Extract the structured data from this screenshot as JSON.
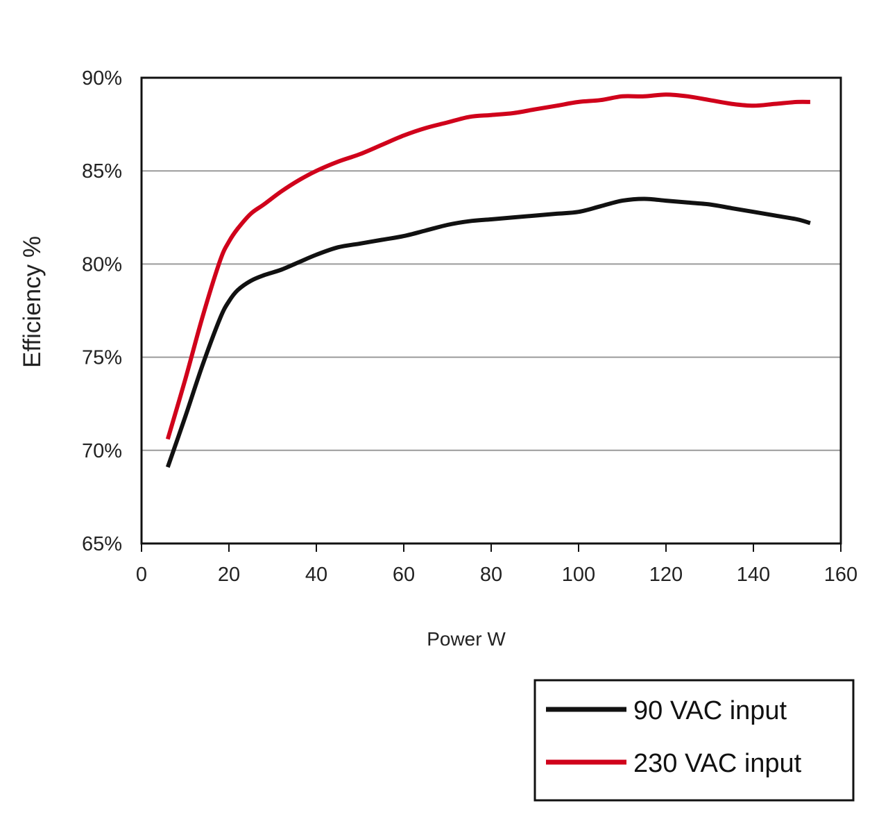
{
  "chart_data": {
    "type": "line",
    "title": "",
    "xlabel": "Power W",
    "ylabel": "Efficiency %",
    "xlim": [
      0,
      160
    ],
    "ylim": [
      65,
      90
    ],
    "x_ticks": [
      0,
      20,
      40,
      60,
      80,
      100,
      120,
      140,
      160
    ],
    "x_tick_labels": [
      "0",
      "20",
      "40",
      "60",
      "80",
      "100",
      "120",
      "140",
      "160"
    ],
    "y_ticks": [
      65,
      70,
      75,
      80,
      85,
      90
    ],
    "y_tick_labels": [
      "65%",
      "70%",
      "75%",
      "80%",
      "85%",
      "90%"
    ],
    "grid": "horizontal",
    "legend_position": "bottom-right",
    "series": [
      {
        "name": "90 VAC input",
        "color": "#111111",
        "x": [
          6,
          10,
          14,
          18,
          20,
          22,
          25,
          28,
          32,
          36,
          40,
          45,
          50,
          55,
          60,
          65,
          70,
          75,
          80,
          85,
          90,
          95,
          100,
          105,
          110,
          115,
          120,
          125,
          130,
          135,
          140,
          145,
          150,
          153
        ],
        "y": [
          69.1,
          71.8,
          74.6,
          77.1,
          78.0,
          78.6,
          79.1,
          79.4,
          79.7,
          80.1,
          80.5,
          80.9,
          81.1,
          81.3,
          81.5,
          81.8,
          82.1,
          82.3,
          82.4,
          82.5,
          82.6,
          82.7,
          82.8,
          83.1,
          83.4,
          83.5,
          83.4,
          83.3,
          83.2,
          83.0,
          82.8,
          82.6,
          82.4,
          82.2
        ]
      },
      {
        "name": "230 VAC input",
        "color": "#d0021b",
        "x": [
          6,
          10,
          14,
          18,
          20,
          22,
          25,
          28,
          32,
          36,
          40,
          45,
          50,
          55,
          60,
          65,
          70,
          75,
          80,
          85,
          90,
          95,
          100,
          105,
          110,
          115,
          120,
          125,
          130,
          135,
          140,
          145,
          150,
          153
        ],
        "y": [
          70.6,
          73.8,
          77.2,
          80.2,
          81.2,
          81.9,
          82.7,
          83.2,
          83.9,
          84.5,
          85.0,
          85.5,
          85.9,
          86.4,
          86.9,
          87.3,
          87.6,
          87.9,
          88.0,
          88.1,
          88.3,
          88.5,
          88.7,
          88.8,
          89.0,
          89.0,
          89.1,
          89.0,
          88.8,
          88.6,
          88.5,
          88.6,
          88.7,
          88.7
        ]
      }
    ]
  }
}
